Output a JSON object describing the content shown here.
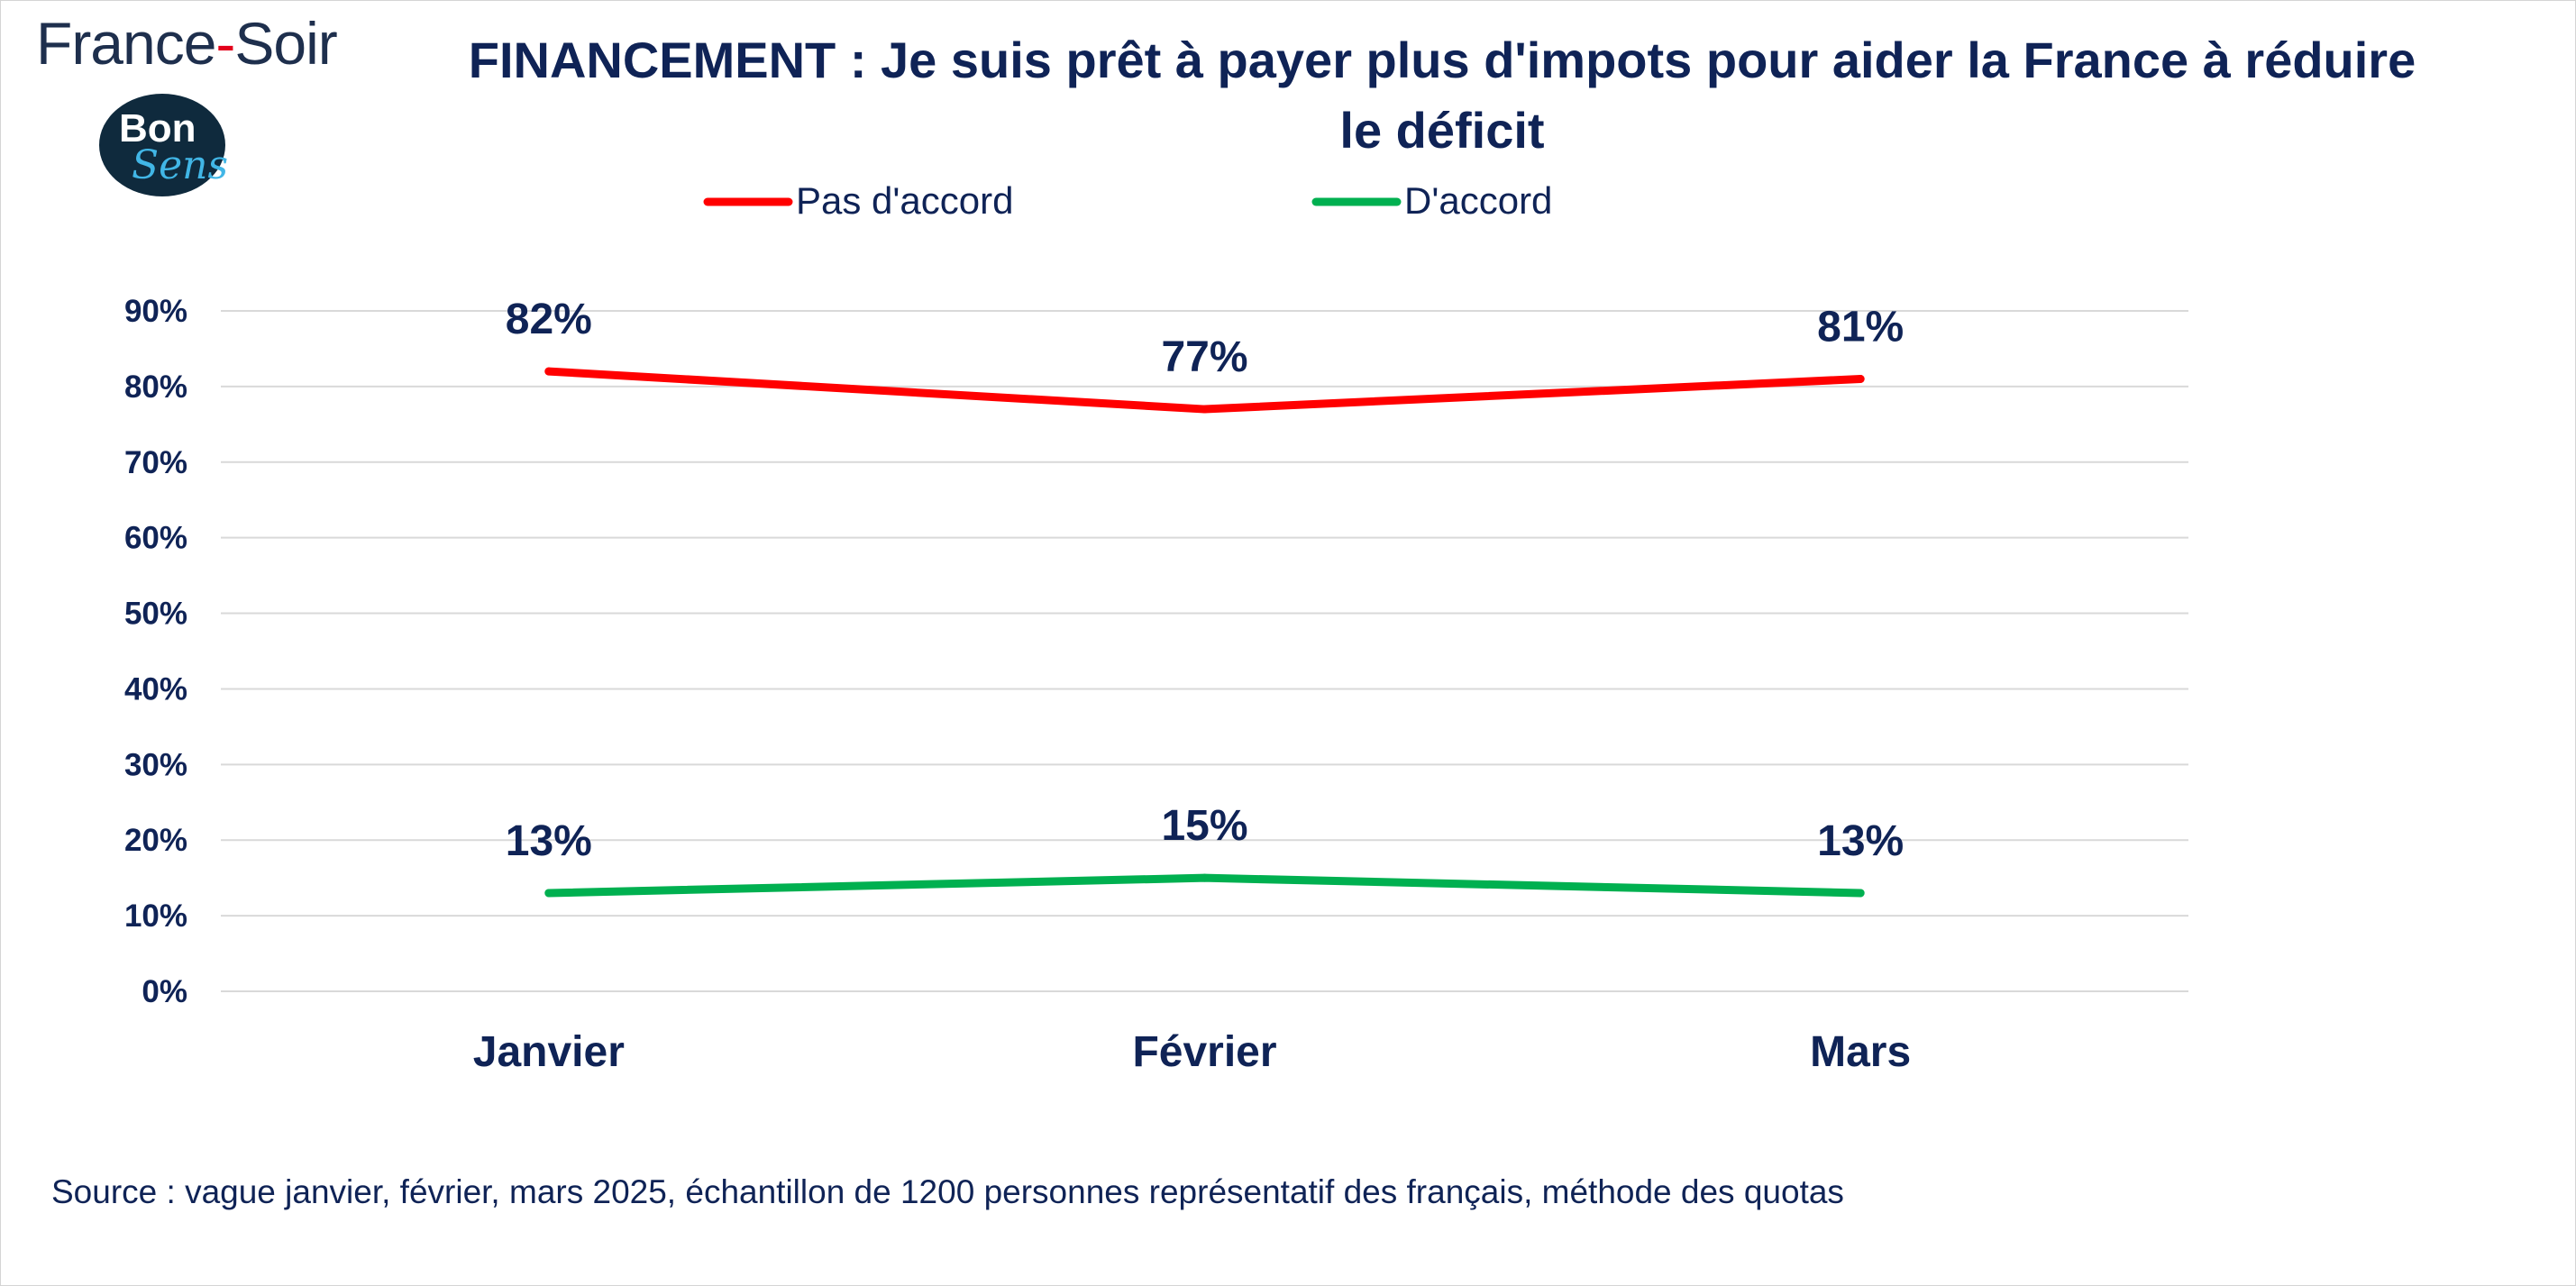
{
  "brand": {
    "name_left": "France",
    "name_sep": "-",
    "name_right": "Soir"
  },
  "logo": {
    "line1": "Bon",
    "line2": "Sens"
  },
  "source": "Source : vague janvier, février, mars 2025, échantillon de 1200 personnes représentatif des français, méthode des quotas",
  "chart_data": {
    "type": "line",
    "title": "FINANCEMENT : Je suis prêt à payer plus d'impots pour aider la France à réduire le déficit",
    "categories": [
      "Janvier",
      "Février",
      "Mars"
    ],
    "series": [
      {
        "name": "Pas d'accord",
        "color": "#ff0000",
        "values": [
          82,
          77,
          81
        ],
        "labels": [
          "82%",
          "77%",
          "81%"
        ]
      },
      {
        "name": "D'accord",
        "color": "#00b050",
        "values": [
          13,
          15,
          13
        ],
        "labels": [
          "13%",
          "15%",
          "13%"
        ]
      }
    ],
    "yticks": [
      "0%",
      "10%",
      "20%",
      "30%",
      "40%",
      "50%",
      "60%",
      "70%",
      "80%",
      "90%"
    ],
    "ylim": [
      0,
      90
    ],
    "ystep": 10,
    "grid": true,
    "legend_position": "top-center"
  }
}
